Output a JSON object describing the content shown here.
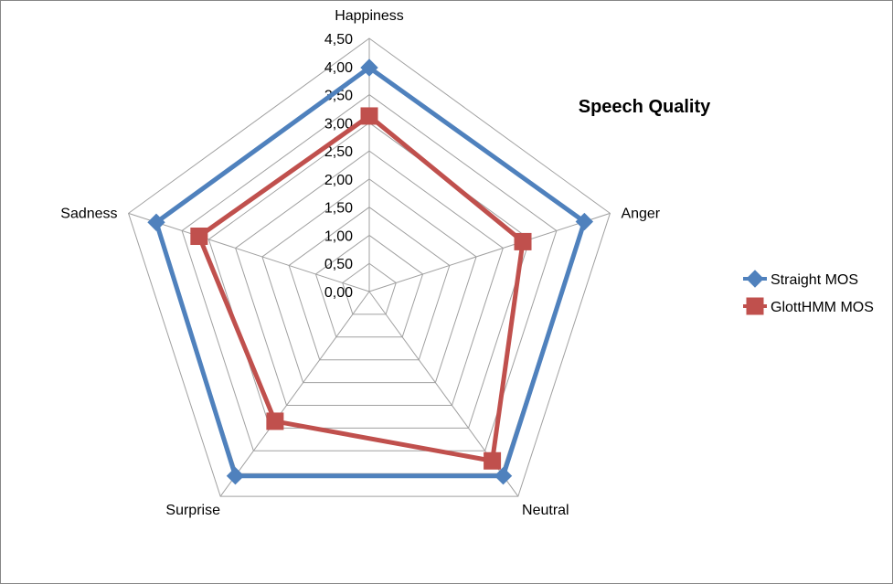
{
  "chart_data": {
    "type": "radar",
    "title": "Speech Quality",
    "categories": [
      "Happiness",
      "Anger",
      "Neutral",
      "Surprise",
      "Sadness"
    ],
    "rlim": [
      0,
      4.5
    ],
    "ticks": [
      "0,00",
      "0,50",
      "1,00",
      "1,50",
      "2,00",
      "2,50",
      "3,00",
      "3,50",
      "4,00",
      "4,50"
    ],
    "tick_values": [
      0,
      0.5,
      1.0,
      1.5,
      2.0,
      2.5,
      3.0,
      3.5,
      4.0,
      4.5
    ],
    "grid": true,
    "legend_position": "right",
    "series": [
      {
        "name": "Straight MOS",
        "values": [
          3.98,
          4.02,
          4.05,
          4.05,
          3.98
        ],
        "color": "#4F81BD",
        "marker": "diamond"
      },
      {
        "name": "GlottHMM MOS",
        "values": [
          3.12,
          2.87,
          3.72,
          2.85,
          3.18
        ],
        "color": "#C0504D",
        "marker": "square"
      }
    ]
  }
}
